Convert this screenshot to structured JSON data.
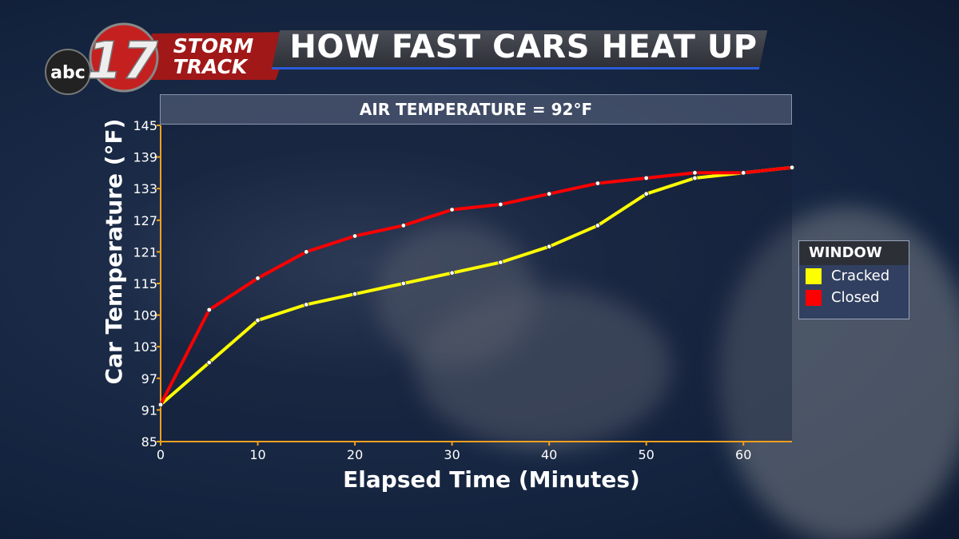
{
  "branding": {
    "network": "abc",
    "channel": "17",
    "line1": "STORM",
    "line2": "TRACK"
  },
  "title": "HOW FAST CARS HEAT UP",
  "chart_data": {
    "type": "line",
    "subtitle": "AIR TEMPERATURE = 92°F",
    "xlabel": "Elapsed Time (Minutes)",
    "ylabel": "Car Temperature (°F)",
    "xlim": [
      0,
      65
    ],
    "ylim": [
      85,
      145
    ],
    "xticks": [
      0,
      10,
      20,
      30,
      40,
      50,
      60
    ],
    "yticks": [
      85,
      91,
      97,
      103,
      109,
      115,
      121,
      127,
      133,
      139,
      145
    ],
    "x": [
      0,
      5,
      10,
      15,
      20,
      25,
      30,
      35,
      40,
      45,
      50,
      55,
      60,
      65
    ],
    "grid": false,
    "legend_title": "WINDOW",
    "legend_position": "right",
    "series": [
      {
        "name": "Cracked",
        "color": "#ffff00",
        "values": [
          92,
          100,
          108,
          111,
          113,
          115,
          117,
          119,
          122,
          126,
          132,
          135,
          136,
          137
        ]
      },
      {
        "name": "Closed",
        "color": "#ff0000",
        "values": [
          92,
          110,
          116,
          121,
          124,
          126,
          129,
          130,
          132,
          134,
          135,
          136,
          136,
          137
        ]
      }
    ],
    "axis_color": "#f0a020"
  }
}
